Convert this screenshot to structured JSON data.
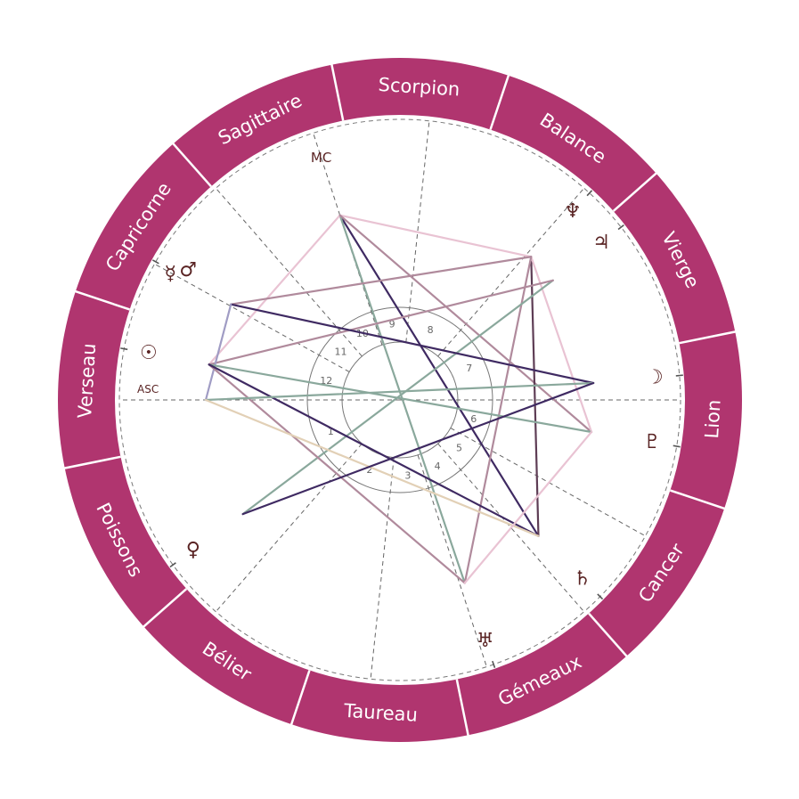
{
  "colors": {
    "ring": "#b0356f",
    "glyph": "#5a2424",
    "pink": "#e9c3d3",
    "mauve": "#b08a9c",
    "dark_purple": "#3f2a62",
    "dark_mauve": "#5e3d55",
    "green": "#8aa89c",
    "lavender": "#a09cc4",
    "beige": "#e2d0b6"
  },
  "signs": [
    {
      "name": "Bélier",
      "start": 0
    },
    {
      "name": "Taureau",
      "start": 30
    },
    {
      "name": "Gémeaux",
      "start": 60
    },
    {
      "name": "Cancer",
      "start": 90
    },
    {
      "name": "Lion",
      "start": 120
    },
    {
      "name": "Vierge",
      "start": 150
    },
    {
      "name": "Balance",
      "start": 180
    },
    {
      "name": "Scorpion",
      "start": 210
    },
    {
      "name": "Sagittaire",
      "start": 240
    },
    {
      "name": "Capricorne",
      "start": 270
    },
    {
      "name": "Verseau",
      "start": 300
    },
    {
      "name": "Poissons",
      "start": 330
    }
  ],
  "angles": {
    "asc": {
      "label": "ASC",
      "longitude": 318.5
    },
    "mc": {
      "label": "MC",
      "longitude": 246.5
    }
  },
  "houses": [
    {
      "number": "1",
      "cusp": 318.5
    },
    {
      "number": "2",
      "cusp": 7.5
    },
    {
      "number": "3",
      "cusp": 42.5
    },
    {
      "number": "4",
      "cusp": 66.5
    },
    {
      "number": "5",
      "cusp": 89.5
    },
    {
      "number": "6",
      "cusp": 109.5
    },
    {
      "number": "7",
      "cusp": 138.5
    },
    {
      "number": "8",
      "cusp": 187.5
    },
    {
      "number": "9",
      "cusp": 222.5
    },
    {
      "number": "10",
      "cusp": 246.5
    },
    {
      "number": "11",
      "cusp": 269.5
    },
    {
      "number": "12",
      "cusp": 289.5
    }
  ],
  "planets": [
    {
      "key": "sun",
      "glyph": "☉",
      "icon": "sun-icon",
      "longitude": 308
    },
    {
      "key": "mercury_mars",
      "glyph": "☿",
      "glyph2": "♂",
      "icon": "mercury-mars-icon",
      "longitude": 289
    },
    {
      "key": "neptune",
      "glyph": "♆",
      "icon": "neptune-icon",
      "longitude": 186
    },
    {
      "key": "jupiter",
      "glyph": "♃",
      "icon": "jupiter-icon",
      "longitude": 176.5
    },
    {
      "key": "moon",
      "glyph": "☽",
      "icon": "moon-icon",
      "longitude": 143.5
    },
    {
      "key": "pluto",
      "glyph": "♇",
      "icon": "pluto-icon",
      "longitude": 129
    },
    {
      "key": "saturn",
      "glyph": "♄",
      "icon": "saturn-icon",
      "longitude": 94
    },
    {
      "key": "uranus",
      "glyph": "♅",
      "icon": "uranus-icon",
      "longitude": 68
    },
    {
      "key": "venus",
      "glyph": "♀",
      "icon": "venus-icon",
      "longitude": 354.5
    }
  ],
  "aspects": [
    {
      "from": "mc",
      "to": "neptune",
      "color": "pink"
    },
    {
      "from": "mc",
      "to": "saturn",
      "color": "dark_purple"
    },
    {
      "from": "mc",
      "to": "uranus",
      "color": "green"
    },
    {
      "from": "mc",
      "to": "sun",
      "color": "pink"
    },
    {
      "from": "mc",
      "to": "pluto",
      "color": "mauve"
    },
    {
      "from": "neptune",
      "to": "mercury_mars",
      "color": "mauve"
    },
    {
      "from": "neptune",
      "to": "saturn",
      "color": "dark_mauve"
    },
    {
      "from": "neptune",
      "to": "pluto",
      "color": "pink"
    },
    {
      "from": "neptune",
      "to": "uranus",
      "color": "mauve"
    },
    {
      "from": "jupiter",
      "to": "venus",
      "color": "green"
    },
    {
      "from": "jupiter",
      "to": "sun",
      "color": "mauve"
    },
    {
      "from": "mercury_mars",
      "to": "moon",
      "color": "dark_purple"
    },
    {
      "from": "mercury_mars",
      "to": "asc",
      "color": "lavender"
    },
    {
      "from": "sun",
      "to": "pluto",
      "color": "green"
    },
    {
      "from": "sun",
      "to": "uranus",
      "color": "mauve"
    },
    {
      "from": "sun",
      "to": "saturn",
      "color": "dark_purple"
    },
    {
      "from": "asc",
      "to": "moon",
      "color": "green"
    },
    {
      "from": "asc",
      "to": "saturn",
      "color": "beige"
    },
    {
      "from": "venus",
      "to": "moon",
      "color": "dark_purple"
    },
    {
      "from": "pluto",
      "to": "uranus",
      "color": "pink"
    }
  ]
}
